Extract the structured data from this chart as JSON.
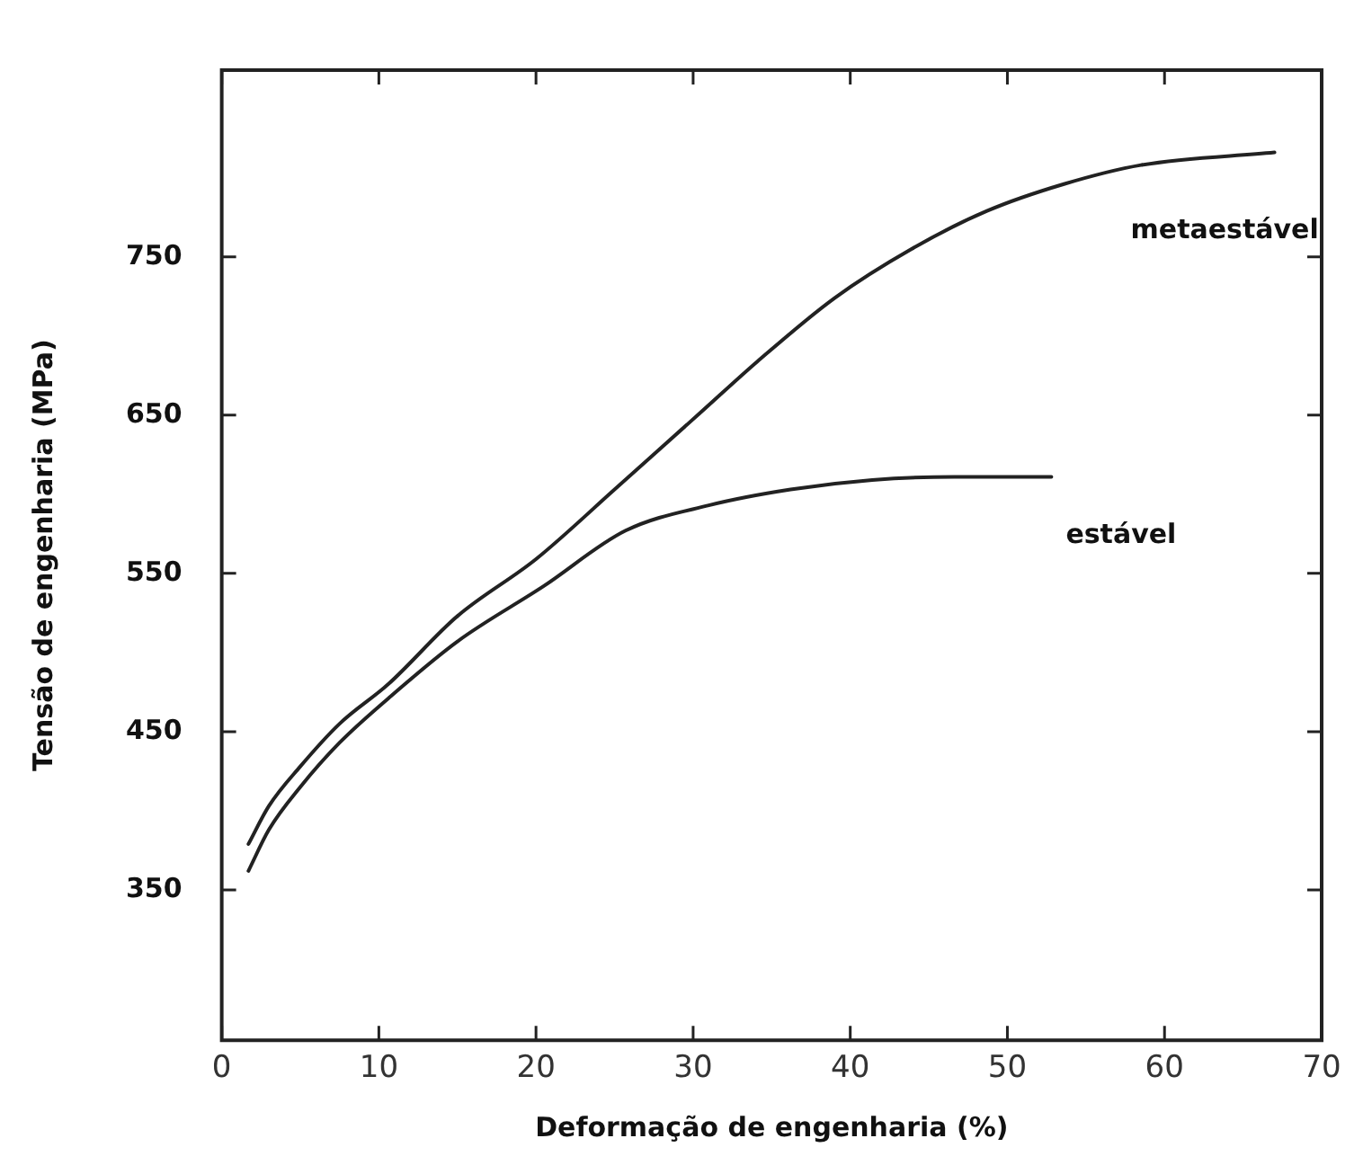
{
  "chart_data": {
    "type": "line",
    "xlabel": "Deformação de engenharia (%)",
    "ylabel": "Tensão de engenharia (MPa)",
    "xlim": [
      0,
      70
    ],
    "xticks": [
      0,
      10,
      20,
      30,
      40,
      50,
      60,
      70
    ],
    "ylim": [
      255,
      868
    ],
    "yticks": [
      350,
      450,
      550,
      650,
      750
    ],
    "grid": false,
    "legend": false,
    "marker": "none",
    "line_style": "solid",
    "series": [
      {
        "name": "metaestável",
        "color": "#222222",
        "x": [
          1.7,
          3,
          5,
          7.5,
          10.6,
          15,
          20,
          25,
          30.4,
          34.1,
          39,
          43.9,
          48.7,
          53.6,
          58.5,
          67
        ],
        "values": [
          379,
          403,
          428,
          455,
          480,
          523,
          559,
          603,
          651,
          684,
          724,
          755,
          779,
          796,
          808,
          816
        ]
      },
      {
        "name": "estável",
        "color": "#222222",
        "x": [
          1.7,
          3,
          5,
          7.5,
          10.6,
          15,
          20.5,
          25.7,
          31,
          36.2,
          41.4,
          46.6,
          52.8
        ],
        "values": [
          362,
          388,
          415,
          443,
          471,
          507,
          542,
          577,
          593,
          603,
          609,
          611,
          611
        ]
      }
    ]
  }
}
